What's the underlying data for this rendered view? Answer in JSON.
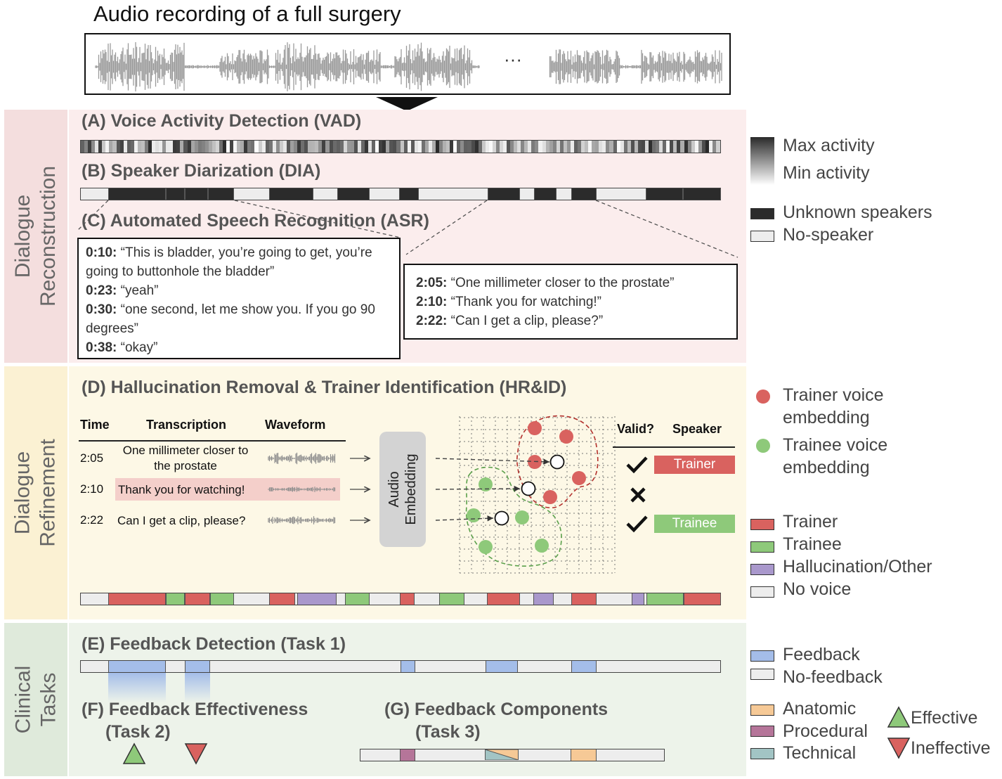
{
  "header": {
    "title": "Audio recording of a full surgery",
    "ellipsis": "···"
  },
  "sections": {
    "reconstruction": "Dialogue\nReconstruction",
    "refinement": "Dialogue\nRefinement",
    "clinical": "Clinical\nTasks"
  },
  "titles": {
    "vad": "(A) Voice Activity Detection (VAD)",
    "dia": "(B) Speaker Diarization (DIA)",
    "asr": "(C) Automated Speech Recognition (ASR)",
    "hrid": "(D) Hallucination Removal & Trainer Identification (HR&ID)",
    "fd": "(E) Feedback Detection (Task 1)",
    "fe_line1": "(F) Feedback Effectiveness",
    "fe_line2": "(Task 2)",
    "fc_line1": "(G) Feedback Components",
    "fc_line2": "(Task 3)"
  },
  "asr_left": [
    {
      "time": "0:10:",
      "text": " “This is bladder, you’re going to get, you’re going to buttonhole the bladder”"
    },
    {
      "time": "0:23:",
      "text": " “yeah”"
    },
    {
      "time": "0:30:",
      "text": " “one second, let me show you. If you go 90 degrees”"
    },
    {
      "time": "0:38:",
      "text": " “okay”"
    }
  ],
  "asr_right": [
    {
      "time": "2:05:",
      "text": " “One millimeter closer to the prostate”"
    },
    {
      "time": "2:10:",
      "text": " “Thank you for watching!”"
    },
    {
      "time": "2:22:",
      "text": " “Can I get a clip, please?”"
    }
  ],
  "table": {
    "headers": {
      "time": "Time",
      "transcription": "Transcription",
      "waveform": "Waveform",
      "valid": "Valid?",
      "speaker": "Speaker"
    },
    "rows": [
      {
        "time": "2:05",
        "text": "One millimeter closer to the prostate",
        "speaker": "Trainer"
      },
      {
        "time": "2:10",
        "text": "Thank you for watching!",
        "speaker": ""
      },
      {
        "time": "2:22",
        "text": "Can I get a clip, please?",
        "speaker": "Trainee"
      }
    ],
    "embedding_label": "Audio Embedding"
  },
  "legend": {
    "max_activity": "Max activity",
    "min_activity": "Min activity",
    "unknown_speakers": "Unknown speakers",
    "no_speaker": "No-speaker",
    "trainer_embedding": "Trainer voice embedding",
    "trainee_embedding": "Trainee voice embedding",
    "trainer": "Trainer",
    "trainee": "Trainee",
    "hallucination": "Hallucination/Other",
    "no_voice": "No voice",
    "feedback": "Feedback",
    "no_feedback": "No-feedback",
    "anatomic": "Anatomic",
    "procedural": "Procedural",
    "technical": "Technical",
    "effective": "Effective",
    "ineffective": "Ineffective"
  },
  "colors": {
    "trainer": "#d9625f",
    "trainee": "#8ec97a",
    "hallucination": "#a998cc",
    "feedback": "#a4bde9",
    "anatomic": "#f6c996",
    "procedural": "#b57599",
    "technical": "#a2c4c4",
    "no_voice": "#ededed",
    "unknown": "#2b2b2b"
  }
}
